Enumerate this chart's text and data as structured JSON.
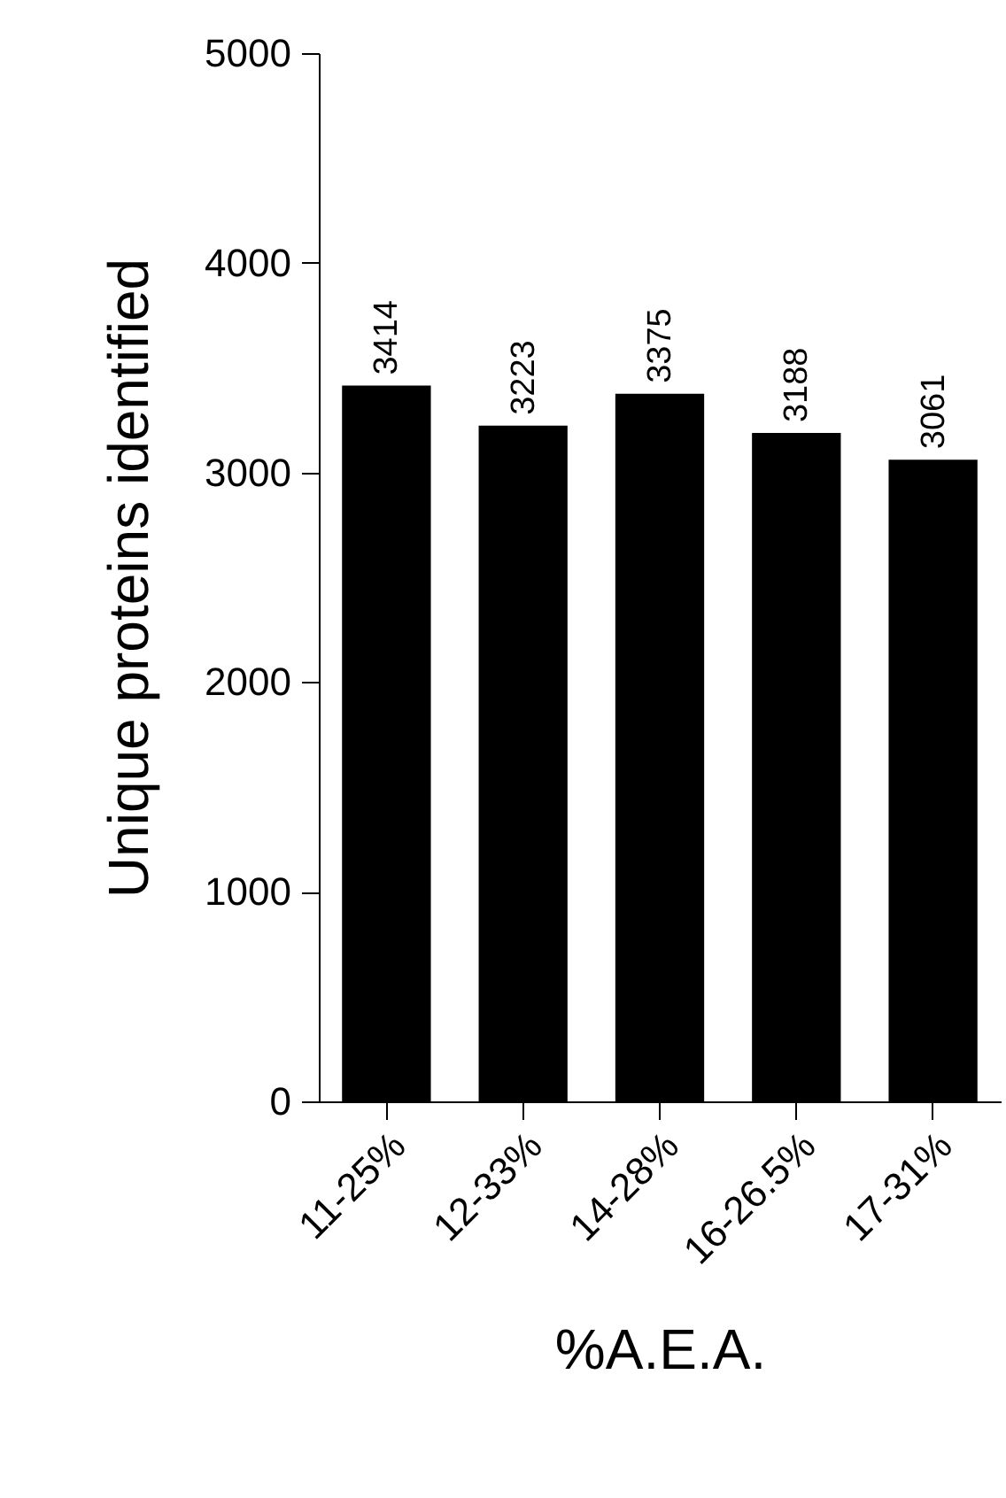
{
  "chart_data": {
    "type": "bar",
    "xlabel": "%A.E.A.",
    "ylabel": "Unique proteins identified",
    "categories": [
      "11-25%",
      "12-33%",
      "14-28%",
      "16-26.5%",
      "17-31%"
    ],
    "values": [
      3414,
      3223,
      3375,
      3188,
      3061
    ],
    "color": "#000000",
    "data_labels": true,
    "ylim": [
      0,
      5000
    ],
    "yticks": [
      0,
      1000,
      2000,
      3000,
      4000,
      5000
    ],
    "grid": false
  }
}
